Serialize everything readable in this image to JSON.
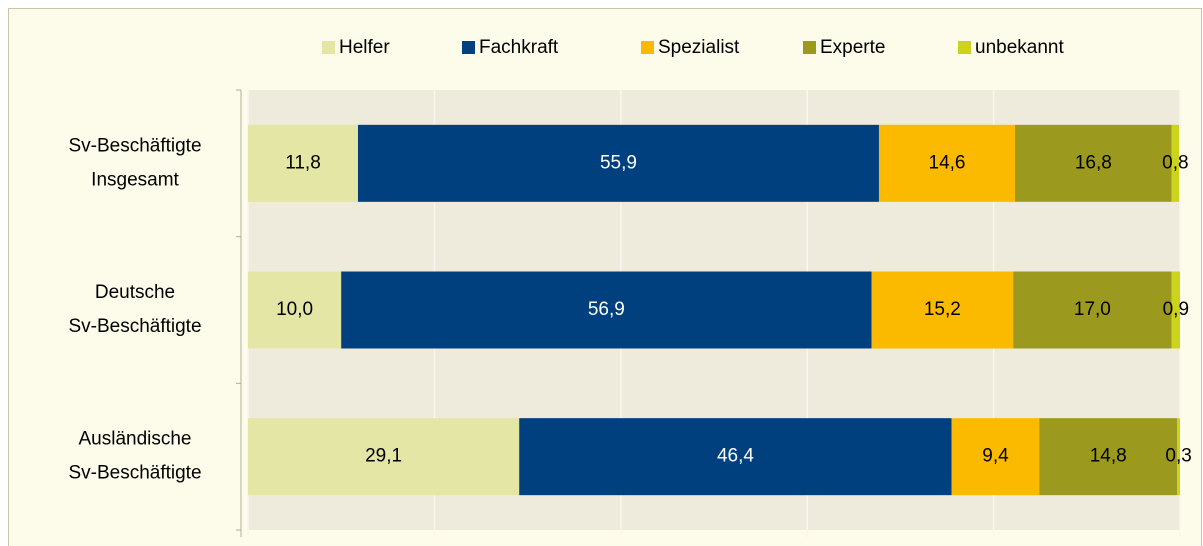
{
  "chart_data": {
    "type": "stacked-bar-horizontal",
    "categories": [
      "Sv-Beschäftigte Insgesamt",
      "Deutsche Sv-Beschäftigte",
      "Ausländische Sv-Beschäftigte"
    ],
    "series": [
      {
        "name": "Helfer",
        "color": "#e4e6a6",
        "values": [
          11.8,
          10.0,
          29.1
        ],
        "value_labels": [
          "11,8",
          "10,0",
          "29,1"
        ]
      },
      {
        "name": "Fachkraft",
        "color": "#00407f",
        "values": [
          55.9,
          56.9,
          46.4
        ],
        "value_labels": [
          "55,9",
          "56,9",
          "46,4"
        ]
      },
      {
        "name": "Spezialist",
        "color": "#fbb900",
        "values": [
          14.6,
          15.2,
          9.4
        ],
        "value_labels": [
          "14,6",
          "15,2",
          "9,4"
        ]
      },
      {
        "name": "Experte",
        "color": "#9b9a1f",
        "values": [
          16.8,
          17.0,
          14.8
        ],
        "value_labels": [
          "16,8",
          "17,0",
          "14,8"
        ]
      },
      {
        "name": "unbekannt",
        "color": "#cbd31d",
        "values": [
          0.8,
          0.9,
          0.3
        ],
        "value_labels": [
          "0,8",
          "0,9",
          "0,3"
        ]
      }
    ],
    "xlim": [
      0,
      100
    ],
    "xticks": [
      0,
      20,
      40,
      60,
      80,
      100
    ],
    "grid": true,
    "legend": "top"
  }
}
